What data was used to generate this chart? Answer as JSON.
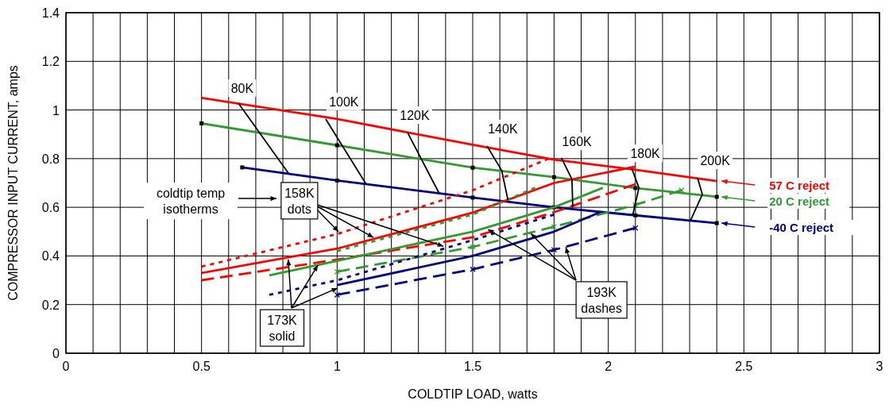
{
  "chart_data": {
    "type": "line",
    "xlabel": "COLDTIP LOAD,  watts",
    "ylabel": "COMPRESSOR INPUT CURRENT,  amps",
    "xlim": [
      0,
      3
    ],
    "ylim": [
      0,
      1.4
    ],
    "xticks": [
      0,
      {
        "value": 0.1,
        "label": null
      },
      {
        "value": 0.2,
        "label": null
      },
      {
        "value": 0.3,
        "label": null
      },
      {
        "value": 0.4,
        "label": null
      },
      0.5,
      {
        "value": 0.6,
        "label": null
      },
      {
        "value": 0.7,
        "label": null
      },
      {
        "value": 0.8,
        "label": null
      },
      {
        "value": 0.9,
        "label": null
      },
      1,
      {
        "value": 1.1,
        "label": null
      },
      {
        "value": 1.2,
        "label": null
      },
      {
        "value": 1.3,
        "label": null
      },
      {
        "value": 1.4,
        "label": null
      },
      1.5,
      {
        "value": 1.6,
        "label": null
      },
      {
        "value": 1.7,
        "label": null
      },
      {
        "value": 1.8,
        "label": null
      },
      {
        "value": 1.9,
        "label": null
      },
      2,
      {
        "value": 2.1,
        "label": null
      },
      {
        "value": 2.2,
        "label": null
      },
      {
        "value": 2.3,
        "label": null
      },
      {
        "value": 2.4,
        "label": null
      },
      2.5,
      {
        "value": 2.6,
        "label": null
      },
      {
        "value": 2.7,
        "label": null
      },
      {
        "value": 2.8,
        "label": null
      },
      {
        "value": 2.9,
        "label": null
      },
      3
    ],
    "yticks": [
      0,
      0.2,
      0.4,
      0.6,
      0.8,
      1,
      1.2,
      1.4
    ],
    "grid": true,
    "legend": "right",
    "series": [
      {
        "name": "57 C reject",
        "color": "#ff0000",
        "x": [
          0.5,
          1,
          1.5,
          1.8,
          2.1,
          2.4
        ],
        "values": [
          1.05,
          0.963,
          0.857,
          0.796,
          0.754,
          0.708
        ],
        "marker": "none",
        "line_style": "solid"
      },
      {
        "name": "20 C reject",
        "color": "#339933",
        "x": [
          0.5,
          1,
          1.5,
          1.8,
          2.1,
          2.4
        ],
        "values": [
          0.945,
          0.855,
          0.763,
          0.724,
          0.679,
          0.643
        ],
        "marker": "square",
        "line_style": "solid"
      },
      {
        "name": "-40 C reject",
        "color": "#000080",
        "x": [
          0.65,
          1,
          1.5,
          1.8,
          2.1,
          2.4
        ],
        "values": [
          0.764,
          0.71,
          0.64,
          0.6,
          0.567,
          0.535
        ],
        "marker": "square",
        "line_style": "solid"
      },
      {
        "color": "#ff0000",
        "x": [
          0.5,
          1,
          1.5,
          1.8,
          2.1
        ],
        "values": [
          0.33,
          0.43,
          0.578,
          0.7,
          0.767
        ],
        "marker": "none",
        "line_style": "solid"
      },
      {
        "color": "#ff0000",
        "x": [
          0.5,
          1,
          1.5,
          1.78
        ],
        "values": [
          0.356,
          0.49,
          0.67,
          0.8
        ],
        "marker": "none",
        "line_style": "dotted"
      },
      {
        "color": "#ff0000",
        "x": [
          0.5,
          1,
          1.5,
          1.8,
          2.1
        ],
        "values": [
          0.3,
          0.385,
          0.477,
          0.58,
          0.695
        ],
        "marker": "none",
        "line_style": "dashed"
      },
      {
        "color": "#339933",
        "x": [
          0.75,
          1,
          1.5,
          1.8,
          1.98
        ],
        "values": [
          0.32,
          0.38,
          0.5,
          0.6,
          0.68
        ],
        "marker": "none",
        "line_style": "solid"
      },
      {
        "color": "#339933",
        "x": [
          1,
          1.5,
          1.73
        ],
        "values": [
          0.42,
          0.57,
          0.68
        ],
        "marker": "none",
        "line_style": "dotted"
      },
      {
        "color": "#339933",
        "x": [
          1,
          1.5,
          1.8,
          2.1,
          2.27
        ],
        "values": [
          0.335,
          0.437,
          0.52,
          0.61,
          0.67
        ],
        "marker": "cross",
        "line_style": "dashed"
      },
      {
        "color": "#000080",
        "x": [
          1,
          1.5,
          1.8,
          1.97
        ],
        "values": [
          0.28,
          0.4,
          0.5,
          0.58
        ],
        "marker": "none",
        "line_style": "solid"
      },
      {
        "color": "#000080",
        "x": [
          0.75,
          1,
          1.5,
          1.8
        ],
        "values": [
          0.24,
          0.3,
          0.465,
          0.57
        ],
        "marker": "none",
        "line_style": "dotted"
      },
      {
        "color": "#000080",
        "x": [
          1,
          1.5,
          1.8,
          2.1
        ],
        "values": [
          0.24,
          0.345,
          0.425,
          0.515
        ],
        "marker": "cross",
        "line_style": "dashed"
      },
      {
        "color": "#000000",
        "x": [
          0.636,
          0.82
        ],
        "values": [
          1.028,
          0.741
        ],
        "marker": "none",
        "line_style": "solid"
      },
      {
        "color": "#000000",
        "x": [
          0.958,
          1.107
        ],
        "values": [
          0.963,
          0.695
        ],
        "marker": "none",
        "line_style": "solid"
      },
      {
        "color": "#000000",
        "x": [
          1.26,
          1.377
        ],
        "values": [
          0.907,
          0.656
        ],
        "marker": "none",
        "line_style": "solid"
      },
      {
        "color": "#000000",
        "x": [
          1.553,
          1.607,
          1.63
        ],
        "values": [
          0.852,
          0.751,
          0.63
        ],
        "marker": "none",
        "line_style": "solid"
      },
      {
        "color": "#000000",
        "x": [
          1.827,
          1.866,
          1.869
        ],
        "values": [
          0.803,
          0.715,
          0.6
        ],
        "marker": "none",
        "line_style": "solid"
      },
      {
        "color": "#000000",
        "x": [
          2.086,
          2.113,
          2.09
        ],
        "values": [
          0.761,
          0.68,
          0.567
        ],
        "marker": "none",
        "line_style": "solid"
      },
      {
        "color": "#000000",
        "x": [
          2.329,
          2.347,
          2.303
        ],
        "values": [
          0.721,
          0.653,
          0.545
        ],
        "marker": "none",
        "line_style": "solid"
      }
    ],
    "annotations": [
      {
        "text": "80K",
        "x": 0.65,
        "y": 1.09
      },
      {
        "text": "100K",
        "x": 1.025,
        "y": 1.035
      },
      {
        "text": "120K",
        "x": 1.286,
        "y": 0.979
      },
      {
        "text": "140K",
        "x": 1.611,
        "y": 0.924
      },
      {
        "text": "160K",
        "x": 1.884,
        "y": 0.871
      },
      {
        "text": "180K",
        "x": 2.136,
        "y": 0.822
      },
      {
        "text": "200K",
        "x": 2.394,
        "y": 0.793
      },
      "coldtip temp\nisotherms",
      {
        "text": "158K\ndots",
        "x": 1.134,
        "y": 0.476
      },
      {
        "text": "173K\nsolid",
        "x": 0.929,
        "y": 0.362
      },
      {
        "text": "193K\ndashes",
        "x": 1.714,
        "y": 0.493
      }
    ]
  }
}
